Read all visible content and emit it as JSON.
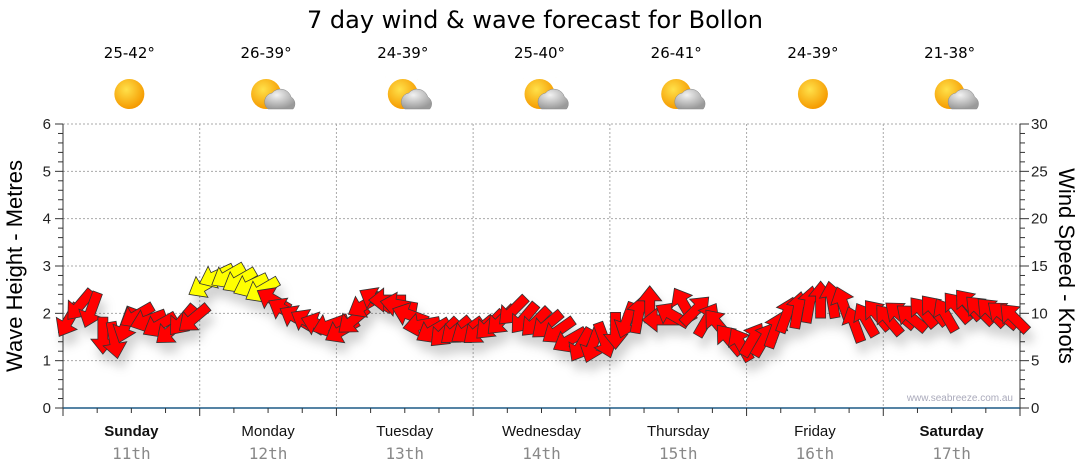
{
  "chart_data": {
    "type": "scatter",
    "title": "7 day wind & wave forecast for Bollon",
    "ylabel_left": "Wave Height - Metres",
    "ylabel_right": "Wind Speed - Knots",
    "ylim_left": [
      0,
      6
    ],
    "yticks_left": [
      "0",
      "1",
      "2",
      "3",
      "4",
      "5",
      "6"
    ],
    "ylim_right": [
      0,
      30
    ],
    "yticks_right": [
      "0",
      "5",
      "10",
      "15",
      "20",
      "25",
      "30"
    ],
    "grid": true,
    "watermark": "www.seabreeze.com.au",
    "days": [
      {
        "name": "Sunday",
        "date": "11th",
        "temp": "25-42°",
        "icon": "sun-icon",
        "bold": true
      },
      {
        "name": "Monday",
        "date": "12th",
        "temp": "26-39°",
        "icon": "sun-cloud-icon",
        "bold": false
      },
      {
        "name": "Tuesday",
        "date": "13th",
        "temp": "24-39°",
        "icon": "sun-cloud-icon",
        "bold": false
      },
      {
        "name": "Wednesday",
        "date": "14th",
        "temp": "25-40°",
        "icon": "sun-cloud-icon",
        "bold": false
      },
      {
        "name": "Thursday",
        "date": "15th",
        "temp": "26-41°",
        "icon": "sun-cloud-icon",
        "bold": false
      },
      {
        "name": "Friday",
        "date": "16th",
        "temp": "24-39°",
        "icon": "sun-icon",
        "bold": false
      },
      {
        "name": "Saturday",
        "date": "17th",
        "temp": "21-38°",
        "icon": "sun-cloud-icon",
        "bold": true
      }
    ],
    "wind_interval_hours": 2,
    "wind_speed_knots": [
      9.3,
      10.9,
      10.4,
      7.7,
      7.2,
      8.8,
      9.8,
      9.3,
      8.8,
      8.2,
      9.3,
      9.5,
      13,
      14,
      14,
      13.5,
      13,
      12.5,
      11.4,
      10.3,
      9.5,
      9.1,
      8.8,
      8.8,
      8.2,
      9.3,
      10.9,
      11.4,
      11.4,
      10.9,
      9.8,
      8.8,
      8.2,
      8,
      8.2,
      8.2,
      8.2,
      8.8,
      9.3,
      10.3,
      9.5,
      9.1,
      8.8,
      8.2,
      7.2,
      6.7,
      6.7,
      7.2,
      8.2,
      9.3,
      9.8,
      10.9,
      9.3,
      9.8,
      10.9,
      10.3,
      9.3,
      8.8,
      7.2,
      6.7,
      7.2,
      7.2,
      8.2,
      9.8,
      10.3,
      10.9,
      11.4,
      11.4,
      10.9,
      8.8,
      9.3,
      9.8,
      9.3,
      9.8,
      9.5,
      10.1,
      10.3,
      9.8,
      10.6,
      10.9,
      10.3,
      10.1,
      9.8,
      9.5
    ],
    "wind_arrow_heading_deg": [
      210,
      220,
      200,
      180,
      170,
      200,
      240,
      250,
      240,
      230,
      220,
      230,
      240,
      245,
      240,
      240,
      245,
      240,
      300,
      300,
      300,
      300,
      290,
      250,
      240,
      230,
      240,
      300,
      270,
      280,
      290,
      260,
      240,
      225,
      230,
      235,
      230,
      225,
      225,
      225,
      220,
      225,
      230,
      235,
      240,
      210,
      200,
      160,
      180,
      200,
      10,
      0,
      270,
      300,
      330,
      45,
      30,
      320,
      320,
      330,
      30,
      30,
      20,
      20,
      10,
      10,
      0,
      350,
      340,
      340,
      330,
      320,
      320,
      310,
      310,
      320,
      320,
      330,
      320,
      320,
      315,
      315,
      310,
      315
    ],
    "wind_colors": {
      "normal": "#ff0000",
      "strong": "#ffff00",
      "strong_threshold_knots": 12
    }
  }
}
